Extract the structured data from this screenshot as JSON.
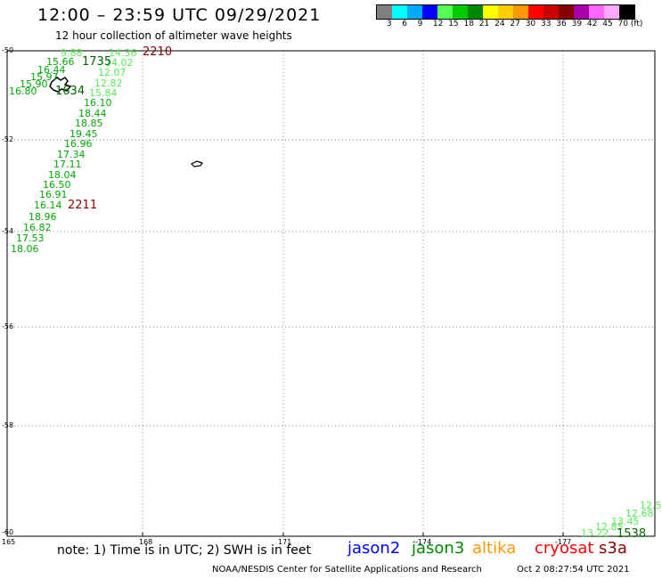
{
  "header": {
    "title": "12:00 – 23:59 UTC 09/29/2021",
    "subtitle": "12 hour collection of altimeter wave heights"
  },
  "legend": {
    "colors": [
      "#7f7f7f",
      "#00ffff",
      "#00aaff",
      "#0000ff",
      "#55ff55",
      "#00cc00",
      "#008800",
      "#ffff00",
      "#ffcc00",
      "#ff9900",
      "#ff0000",
      "#cc0000",
      "#880000",
      "#aa00aa",
      "#ff66ff",
      "#ffaaff",
      "#000000"
    ],
    "labels": [
      "3",
      "6",
      "9",
      "12",
      "15",
      "18",
      "21",
      "24",
      "27",
      "30",
      "33",
      "36",
      "39",
      "42",
      "45",
      "70 (ft)"
    ]
  },
  "axes": {
    "lon_labels": [
      "165",
      "168",
      "171",
      "-174",
      "-177"
    ],
    "lat_labels": [
      "-50",
      "-52",
      "-54",
      "-56",
      "-58",
      "-60"
    ]
  },
  "track_a": {
    "color": "#00aa00",
    "values": [
      "15.66",
      "16.44",
      "15.97",
      "15.90",
      "16.80",
      "16.10",
      "18.44",
      "18.85",
      "19.45",
      "16.96",
      "17.34",
      "17.11",
      "18.04",
      "16.50",
      "16.91",
      "16.14",
      "18.96",
      "16.82",
      "17.53",
      "18.06"
    ],
    "faded_values": [
      "14.36",
      "14.02",
      "12.07",
      "12.82",
      "15.84"
    ],
    "times": [
      "1735",
      "1634"
    ],
    "swh_partial": "9.88"
  },
  "track_b_times": [
    "2210",
    "2211"
  ],
  "track_c": {
    "values": [
      "12.5",
      "12.68",
      "13.45",
      "12.85",
      "13.22"
    ],
    "time": "1538"
  },
  "footer": {
    "note": "note:  1) Time is in UTC;  2) SWH is in feet",
    "satellites": [
      {
        "name": "jason2",
        "color": "#0000ff"
      },
      {
        "name": "jason3",
        "color": "#008800"
      },
      {
        "name": "altika",
        "color": "#ff9900"
      },
      {
        "name": "cryosat",
        "color": "#ff0000"
      },
      {
        "name": "s3a",
        "color": "#880000"
      }
    ],
    "credit": "NOAA/NESDIS Center for Satellite Applications and Research",
    "generated": "Oct  2 08:27:54 UTC 2021"
  }
}
